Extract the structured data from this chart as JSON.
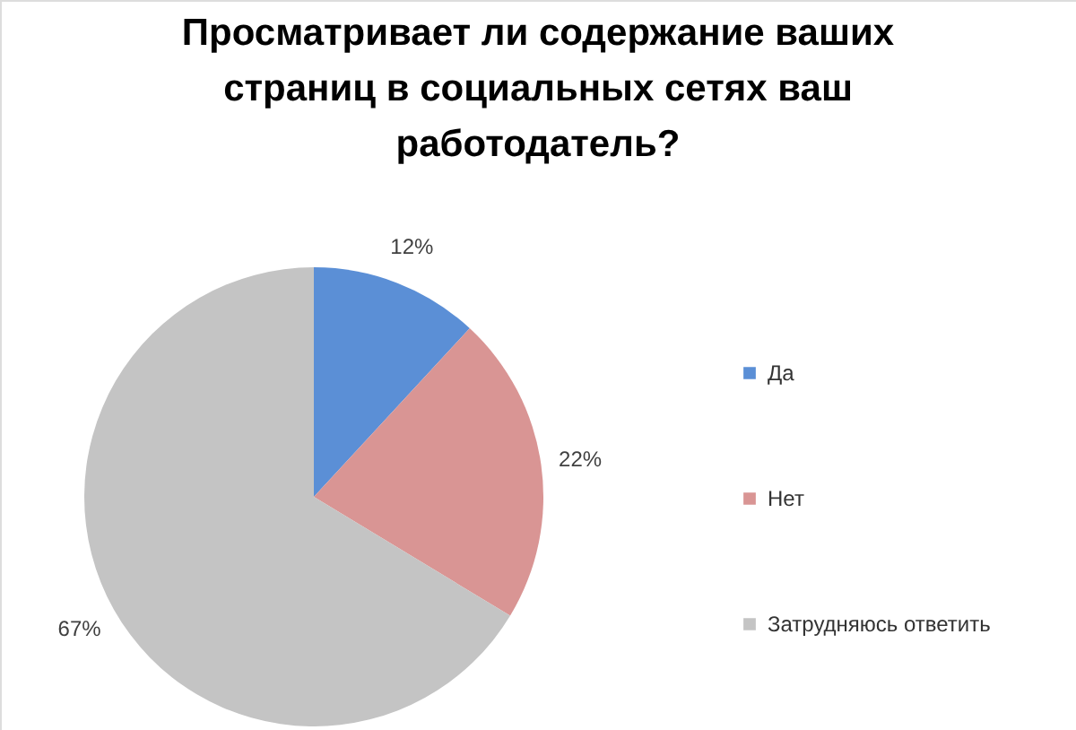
{
  "chart_data": {
    "type": "pie",
    "title": "Просматривает ли содержание ваших страниц в социальных сетях ваш работодатель?",
    "categories": [
      "Да",
      "Нет",
      "Затрудняюсь ответить"
    ],
    "values": [
      12,
      22,
      67
    ],
    "colors": [
      "#5b8fd6",
      "#d99594",
      "#c4c4c4"
    ],
    "value_labels": [
      "12%",
      "22%",
      "67%"
    ],
    "legend": "right"
  }
}
